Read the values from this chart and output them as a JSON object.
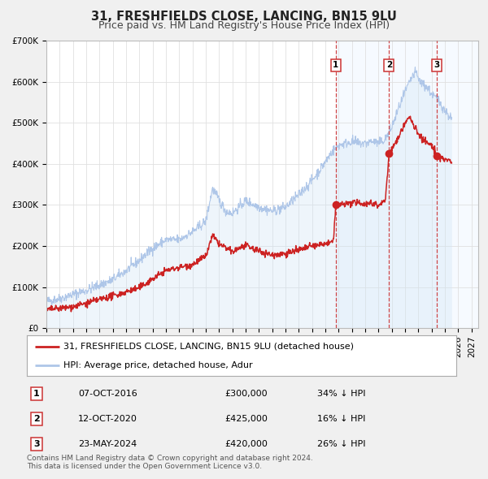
{
  "title": "31, FRESHFIELDS CLOSE, LANCING, BN15 9LU",
  "subtitle": "Price paid vs. HM Land Registry's House Price Index (HPI)",
  "ylim": [
    0,
    700000
  ],
  "yticks": [
    0,
    100000,
    200000,
    300000,
    400000,
    500000,
    600000,
    700000
  ],
  "ytick_labels": [
    "£0",
    "£100K",
    "£200K",
    "£300K",
    "£400K",
    "£500K",
    "£600K",
    "£700K"
  ],
  "xlim_start": 1995.0,
  "xlim_end": 2027.5,
  "hpi_color": "#aec6e8",
  "hpi_fill_color": "#d0e4f5",
  "price_color": "#cc2222",
  "dot_color": "#cc2222",
  "vline_color": "#cc3333",
  "shade_color": "#ddeeff",
  "transaction_dates": [
    2016.77,
    2020.79,
    2024.4
  ],
  "transaction_prices": [
    300000,
    425000,
    420000
  ],
  "transaction_labels": [
    "1",
    "2",
    "3"
  ],
  "legend_price_label": "31, FRESHFIELDS CLOSE, LANCING, BN15 9LU (detached house)",
  "legend_hpi_label": "HPI: Average price, detached house, Adur",
  "table_rows": [
    [
      "1",
      "07-OCT-2016",
      "£300,000",
      "34% ↓ HPI"
    ],
    [
      "2",
      "12-OCT-2020",
      "£425,000",
      "16% ↓ HPI"
    ],
    [
      "3",
      "23-MAY-2024",
      "£420,000",
      "26% ↓ HPI"
    ]
  ],
  "footer": "Contains HM Land Registry data © Crown copyright and database right 2024.\nThis data is licensed under the Open Government Licence v3.0.",
  "background_color": "#f0f0f0",
  "plot_bg_color": "#ffffff",
  "title_fontsize": 10.5,
  "subtitle_fontsize": 9,
  "tick_fontsize": 7.5,
  "legend_fontsize": 8,
  "table_fontsize": 8,
  "footer_fontsize": 6.5
}
